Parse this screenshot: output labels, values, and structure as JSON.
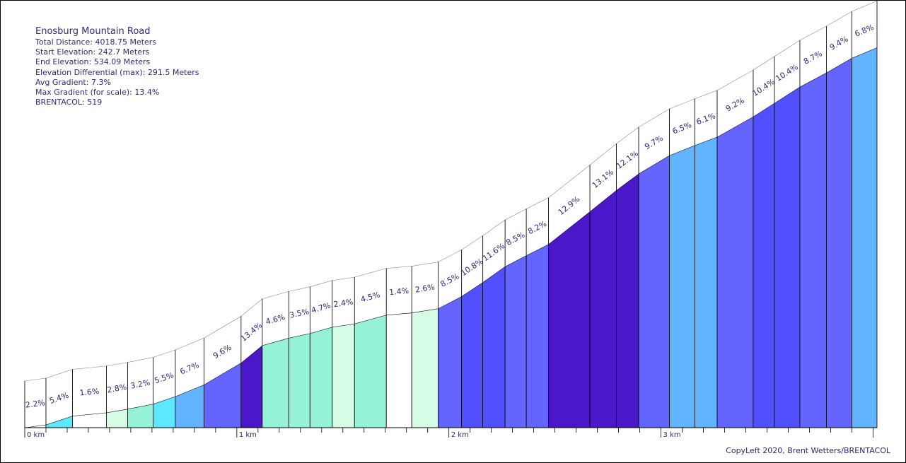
{
  "info": {
    "title": "Enosburg Mountain Road",
    "total_distance": "Total Distance: 4018.75 Meters",
    "start_elevation": "Start Elevation: 242.7 Meters",
    "end_elevation": "End Elevation: 534.09 Meters",
    "elevation_differential": "Elevation Differential (max): 291.5 Meters",
    "avg_gradient": "Avg Gradient: 7.3%",
    "max_gradient": "Max Gradient (for scale): 13.4%",
    "brentacol": "BRENTACOL: 519"
  },
  "credit": "CopyLeft 2020, Brent Wetters/BRENTACOL",
  "chart_data": {
    "type": "area",
    "title": "Enosburg Mountain Road",
    "xlabel": "",
    "ylabel": "",
    "x_ticks": [
      "0 km",
      "1 km",
      "2 km",
      "3 km"
    ],
    "xlim": [
      0,
      4018.75
    ],
    "ylim": [
      242.7,
      534.09
    ],
    "grid": false,
    "legend": "none",
    "segments": [
      {
        "start_m": 0,
        "end_m": 100,
        "gradient": 2.2,
        "color": "#ffffff"
      },
      {
        "start_m": 100,
        "end_m": 225,
        "gradient": 5.4,
        "color": "#5ee8ff"
      },
      {
        "start_m": 225,
        "end_m": 385,
        "gradient": 1.6,
        "color": "#ffffff"
      },
      {
        "start_m": 385,
        "end_m": 485,
        "gradient": 2.8,
        "color": "#d6fce6"
      },
      {
        "start_m": 485,
        "end_m": 605,
        "gradient": 3.2,
        "color": "#96f2d6"
      },
      {
        "start_m": 605,
        "end_m": 710,
        "gradient": 5.5,
        "color": "#5ee8ff"
      },
      {
        "start_m": 710,
        "end_m": 845,
        "gradient": 6.7,
        "color": "#63b4ff"
      },
      {
        "start_m": 845,
        "end_m": 1020,
        "gradient": 9.6,
        "color": "#6464ff"
      },
      {
        "start_m": 1020,
        "end_m": 1120,
        "gradient": 13.4,
        "color": "#4a18c8"
      },
      {
        "start_m": 1120,
        "end_m": 1245,
        "gradient": 4.6,
        "color": "#96f2d6"
      },
      {
        "start_m": 1245,
        "end_m": 1345,
        "gradient": 3.5,
        "color": "#96f2d6"
      },
      {
        "start_m": 1345,
        "end_m": 1450,
        "gradient": 4.7,
        "color": "#96f2d6"
      },
      {
        "start_m": 1450,
        "end_m": 1555,
        "gradient": 2.4,
        "color": "#d6fce6"
      },
      {
        "start_m": 1555,
        "end_m": 1705,
        "gradient": 4.5,
        "color": "#96f2d6"
      },
      {
        "start_m": 1705,
        "end_m": 1825,
        "gradient": 1.4,
        "color": "#ffffff"
      },
      {
        "start_m": 1825,
        "end_m": 1950,
        "gradient": 2.6,
        "color": "#d6fce6"
      },
      {
        "start_m": 1950,
        "end_m": 2060,
        "gradient": 8.5,
        "color": "#6464ff"
      },
      {
        "start_m": 2060,
        "end_m": 2160,
        "gradient": 10.8,
        "color": "#5050ff"
      },
      {
        "start_m": 2160,
        "end_m": 2265,
        "gradient": 11.6,
        "color": "#5050ff"
      },
      {
        "start_m": 2265,
        "end_m": 2365,
        "gradient": 8.5,
        "color": "#6464ff"
      },
      {
        "start_m": 2365,
        "end_m": 2470,
        "gradient": 8.2,
        "color": "#6464ff"
      },
      {
        "start_m": 2470,
        "end_m": 2665,
        "gradient": 12.9,
        "color": "#4a18c8"
      },
      {
        "start_m": 2665,
        "end_m": 2790,
        "gradient": 13.1,
        "color": "#4a18c8"
      },
      {
        "start_m": 2790,
        "end_m": 2895,
        "gradient": 12.1,
        "color": "#4a18c8"
      },
      {
        "start_m": 2895,
        "end_m": 3040,
        "gradient": 9.7,
        "color": "#6464ff"
      },
      {
        "start_m": 3040,
        "end_m": 3160,
        "gradient": 6.5,
        "color": "#63b4ff"
      },
      {
        "start_m": 3160,
        "end_m": 3265,
        "gradient": 6.1,
        "color": "#63b4ff"
      },
      {
        "start_m": 3265,
        "end_m": 3435,
        "gradient": 9.2,
        "color": "#6464ff"
      },
      {
        "start_m": 3435,
        "end_m": 3535,
        "gradient": 10.4,
        "color": "#5050ff"
      },
      {
        "start_m": 3535,
        "end_m": 3655,
        "gradient": 10.4,
        "color": "#5050ff"
      },
      {
        "start_m": 3655,
        "end_m": 3780,
        "gradient": 8.7,
        "color": "#6464ff"
      },
      {
        "start_m": 3780,
        "end_m": 3900,
        "gradient": 9.4,
        "color": "#6464ff"
      },
      {
        "start_m": 3900,
        "end_m": 4018.75,
        "gradient": 6.8,
        "color": "#63b4ff"
      }
    ]
  }
}
